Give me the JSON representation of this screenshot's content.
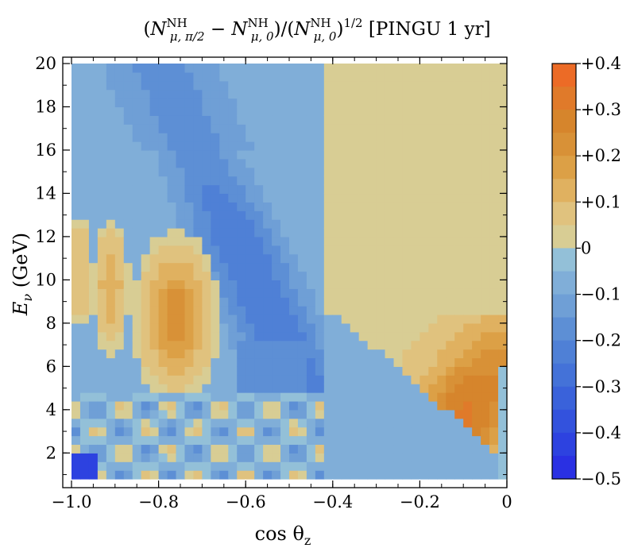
{
  "chart_data": {
    "type": "heatmap",
    "title": "(N^NH_{μ,π/2} − N^NH_{μ,0})/(N^NH_{μ,0})^{1/2} [PINGU 1 yr]",
    "title_parts": {
      "open": "(",
      "N1": "N",
      "sup1": "NH",
      "sub1": "μ, π/2",
      "minus": " − ",
      "N2": "N",
      "sup2": "NH",
      "sub2": "μ, 0",
      "div": ")/(",
      "N3": "N",
      "sup3": "NH",
      "sub3": "μ, 0",
      "close": ")",
      "sup4": "1/2",
      "tail": " [PINGU 1 yr]"
    },
    "xlabel": "cos θz",
    "xlabel_parts": {
      "main": "cos θ",
      "sub": "z"
    },
    "ylabel": "Eν (GeV)",
    "ylabel_parts": {
      "main": "E",
      "sub": "ν",
      "rest": " (GeV)"
    },
    "xlim": [
      -1.0,
      0.0
    ],
    "ylim": [
      0.8,
      20.0
    ],
    "xticks": [
      -1.0,
      -0.8,
      -0.6,
      -0.4,
      -0.2,
      0.0
    ],
    "xtick_labels": [
      "−1.0",
      "−0.8",
      "−0.6",
      "−0.4",
      "−0.2",
      "0"
    ],
    "yticks": [
      2,
      4,
      6,
      8,
      10,
      12,
      14,
      16,
      18,
      20
    ],
    "ytick_labels": [
      "2",
      "4",
      "6",
      "8",
      "10",
      "12",
      "14",
      "16",
      "18",
      "20"
    ],
    "grid": {
      "x_bins": 50,
      "y_bins": 48,
      "x_range": [
        -1.0,
        0.0
      ],
      "y_range": [
        0.8,
        20.0
      ]
    },
    "z_range": [
      -0.5,
      0.4
    ],
    "colorbar": {
      "levels": [
        0.4,
        0.3,
        0.2,
        0.1,
        0.0,
        -0.1,
        -0.2,
        -0.3,
        -0.4,
        -0.5
      ],
      "labels": [
        "+0.4",
        "+0.3",
        "+0.2",
        "+0.1",
        "0",
        "−0.1",
        "−0.2",
        "−0.3",
        "−0.4",
        "−0.5"
      ],
      "bands": [
        {
          "from": 0.35,
          "to": 0.4,
          "color": "#ec6b26"
        },
        {
          "from": 0.3,
          "to": 0.35,
          "color": "#e07a2a"
        },
        {
          "from": 0.25,
          "to": 0.3,
          "color": "#d6852c"
        },
        {
          "from": 0.2,
          "to": 0.25,
          "color": "#d89137"
        },
        {
          "from": 0.15,
          "to": 0.2,
          "color": "#dca046"
        },
        {
          "from": 0.1,
          "to": 0.15,
          "color": "#e0b160"
        },
        {
          "from": 0.05,
          "to": 0.1,
          "color": "#e0c27e"
        },
        {
          "from": 0.0,
          "to": 0.05,
          "color": "#d8cd94"
        },
        {
          "from": -0.05,
          "to": 0.0,
          "color": "#93c0d8"
        },
        {
          "from": -0.1,
          "to": -0.05,
          "color": "#80aed8"
        },
        {
          "from": -0.15,
          "to": -0.1,
          "color": "#6f9fd6"
        },
        {
          "from": -0.2,
          "to": -0.15,
          "color": "#5d8fd5"
        },
        {
          "from": -0.25,
          "to": -0.2,
          "color": "#4f80d6"
        },
        {
          "from": -0.3,
          "to": -0.25,
          "color": "#4472d8"
        },
        {
          "from": -0.35,
          "to": -0.3,
          "color": "#3a62da"
        },
        {
          "from": -0.4,
          "to": -0.35,
          "color": "#3352dd"
        },
        {
          "from": -0.45,
          "to": -0.4,
          "color": "#2d42e0"
        },
        {
          "from": -0.5,
          "to": -0.45,
          "color": "#2a30e3"
        }
      ]
    },
    "regions_description": "Positive lobe for cosθ > -0.42 at high energy and along a diagonal band down to cosθ≈-0.1 at 3 GeV; blue band from (-0.8,20) to (-0.45,3); positive oscillation lobes at cosθ≈-0.77, -0.91, -0.98 below 13 GeV; mixed low-energy checkerboard below 5 GeV."
  },
  "colors": {
    "axis": "#000000",
    "background": "#ffffff",
    "zero_fallback": "#d8cd94"
  }
}
